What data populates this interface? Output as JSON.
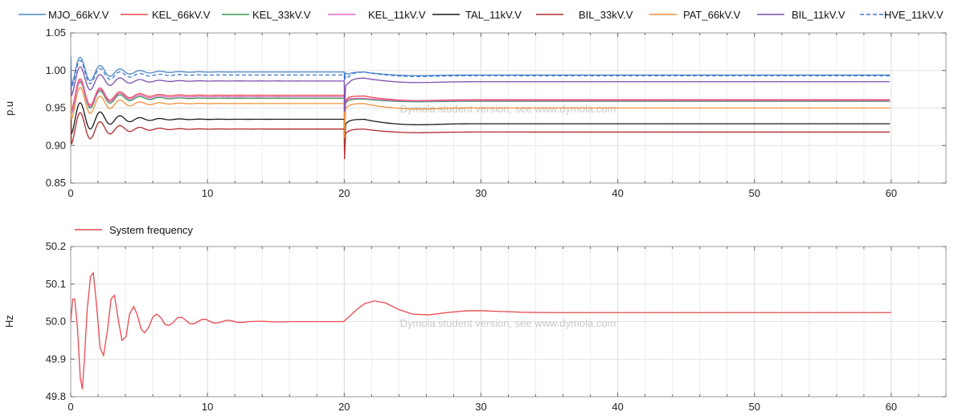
{
  "chart_data": [
    {
      "type": "line",
      "ylabel": "p.u",
      "xlim": [
        0,
        64
      ],
      "ylim": [
        0.85,
        1.05
      ],
      "xticks": [
        0,
        10,
        20,
        30,
        40,
        50,
        60
      ],
      "xticklabels": [
        "0",
        "10",
        "20",
        "30",
        "40",
        "50",
        "60"
      ],
      "yticks": [
        0.85,
        0.9,
        0.95,
        1.0,
        1.05
      ],
      "yticklabels": [
        "0.85",
        "0.90",
        "0.95",
        "1.00",
        "1.05"
      ],
      "grid": true,
      "legend_position": "top",
      "watermark": "Dymola student version, see www.dymola.com",
      "series": [
        {
          "name": "MJO_66kV.V",
          "color": "#4a86c8",
          "dash": false,
          "initial": 1.02,
          "pre": 0.998,
          "dip": 0.989,
          "peak": 0.998,
          "post": 0.994,
          "amp": 0.025
        },
        {
          "name": "KEL_66kV.V",
          "color": "#e8494f",
          "dash": false,
          "initial": 0.99,
          "pre": 0.967,
          "dip": 0.92,
          "peak": 0.966,
          "post": 0.961,
          "amp": 0.028
        },
        {
          "name": "KEL_33kV.V",
          "color": "#3a9a53",
          "dash": false,
          "initial": 0.985,
          "pre": 0.963,
          "dip": 0.918,
          "peak": 0.962,
          "post": 0.959,
          "amp": 0.028
        },
        {
          "name": "KEL_11kV.V",
          "color": "#e066c6",
          "dash": false,
          "initial": 0.98,
          "pre": 0.965,
          "dip": 0.918,
          "peak": 0.963,
          "post": 0.96,
          "amp": 0.028
        },
        {
          "name": "TAL_11kV.V",
          "color": "#1a1a1a",
          "dash": false,
          "initial": 0.96,
          "pre": 0.935,
          "dip": 0.895,
          "peak": 0.935,
          "post": 0.929,
          "amp": 0.028
        },
        {
          "name": "BIL_33kV.V",
          "color": "#b02a2e",
          "dash": false,
          "initial": 0.945,
          "pre": 0.922,
          "dip": 0.882,
          "peak": 0.922,
          "post": 0.918,
          "amp": 0.028
        },
        {
          "name": "PAT_66kV.V",
          "color": "#f0903a",
          "dash": false,
          "initial": 0.975,
          "pre": 0.956,
          "dip": 0.91,
          "peak": 0.956,
          "post": 0.95,
          "amp": 0.028
        },
        {
          "name": "BIL_11kV.V",
          "color": "#7d4fb0",
          "dash": false,
          "initial": 1.0,
          "pre": 0.986,
          "dip": 0.945,
          "peak": 0.99,
          "post": 0.985,
          "amp": 0.025
        },
        {
          "name": "HVE_11kV.V",
          "color": "#3b78d0",
          "dash": true,
          "initial": 1.015,
          "pre": 0.994,
          "dip": 0.986,
          "peak": 0.998,
          "post": 0.993,
          "amp": 0.025
        }
      ]
    },
    {
      "type": "line",
      "ylabel": "Hz",
      "xlim": [
        0,
        64
      ],
      "ylim": [
        49.8,
        50.2
      ],
      "xticks": [
        0,
        10,
        20,
        30,
        40,
        50,
        60
      ],
      "xticklabels": [
        "0",
        "10",
        "20",
        "30",
        "40",
        "50",
        "60"
      ],
      "yticks": [
        49.8,
        49.9,
        50.0,
        50.1,
        50.2
      ],
      "yticklabels": [
        "49.8",
        "49.9",
        "50.0",
        "50.1",
        "50.2"
      ],
      "grid": true,
      "legend_position": "top-left",
      "watermark": "Dymola student version, see www.dymola.com",
      "series": [
        {
          "name": "System frequency",
          "color": "#e8494f",
          "x": [
            0,
            0.15,
            0.3,
            0.5,
            0.7,
            0.85,
            1.0,
            1.2,
            1.45,
            1.65,
            1.9,
            2.15,
            2.4,
            2.7,
            2.95,
            3.2,
            3.5,
            3.75,
            4.05,
            4.3,
            4.6,
            4.85,
            5.15,
            5.4,
            5.7,
            6.0,
            6.3,
            6.6,
            6.9,
            7.2,
            7.5,
            7.8,
            8.1,
            8.4,
            8.7,
            9.0,
            9.3,
            9.6,
            9.9,
            10.2,
            10.5,
            10.8,
            11.1,
            11.4,
            11.8,
            12.2,
            12.6,
            13.0,
            14.0,
            15.0,
            16.0,
            17.0,
            18.0,
            19.0,
            19.95,
            20.5,
            21.0,
            21.5,
            22.2,
            23.0,
            24.0,
            25.0,
            26.2,
            27.5,
            29.0,
            30.0,
            31.5,
            33.0,
            35.0,
            38.0,
            42.0,
            50.0,
            60.0
          ],
          "y": [
            50.0,
            50.06,
            50.06,
            49.98,
            49.85,
            49.82,
            49.9,
            50.03,
            50.12,
            50.13,
            50.04,
            49.93,
            49.91,
            49.98,
            50.06,
            50.07,
            50.0,
            49.95,
            49.96,
            50.02,
            50.04,
            50.02,
            49.98,
            49.97,
            49.985,
            50.012,
            50.02,
            50.01,
            49.992,
            49.99,
            49.998,
            50.01,
            50.012,
            50.004,
            49.995,
            49.994,
            50.0,
            50.006,
            50.006,
            50.0,
            49.996,
            49.997,
            50.0,
            50.004,
            50.002,
            49.998,
            49.998,
            50.0,
            50.001,
            49.999,
            50.0,
            50.0,
            50.0,
            50.0,
            50.0,
            50.018,
            50.035,
            50.048,
            50.055,
            50.05,
            50.032,
            50.02,
            50.018,
            50.024,
            50.029,
            50.029,
            50.027,
            50.025,
            50.024,
            50.024,
            50.024,
            50.024,
            50.024
          ]
        }
      ]
    }
  ]
}
